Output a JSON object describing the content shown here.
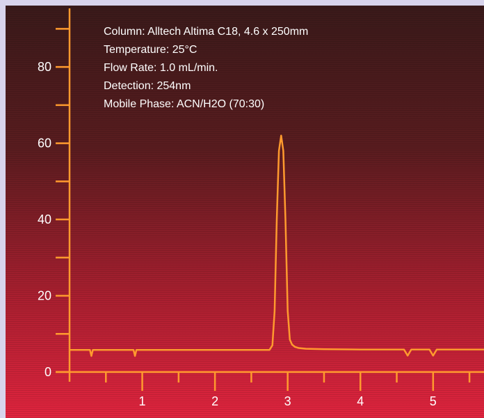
{
  "chart_data": {
    "type": "line",
    "title": "",
    "xlabel": "",
    "ylabel": "",
    "xlim": [
      0,
      5.7
    ],
    "ylim": [
      0,
      95
    ],
    "x_ticks": [
      0,
      0.5,
      1,
      1.5,
      2,
      2.5,
      3,
      3.5,
      4,
      4.5,
      5,
      5.5
    ],
    "x_tick_labels": [
      "1",
      "2",
      "3",
      "4",
      "5"
    ],
    "y_ticks": [
      0,
      10,
      20,
      30,
      40,
      50,
      60,
      70,
      80,
      90
    ],
    "y_tick_labels": [
      "0",
      "20",
      "40",
      "60",
      "80"
    ],
    "grid": false,
    "line_color": "#ff9a2e",
    "axis_color": "#ff9a2e",
    "annotations": [
      "Column: Alltech Altima C18, 4.6 x 250mm",
      "Temperature: 25°C",
      "Flow Rate: 1.0 mL/min.",
      "Detection: 254nm",
      "Mobile Phase: ACN/H2O (70:30)"
    ],
    "series": [
      {
        "x": [
          0,
          0.28,
          0.3,
          0.32,
          0.88,
          0.9,
          0.92,
          2.75,
          2.79,
          2.82,
          2.85,
          2.88,
          2.91,
          2.94,
          2.97,
          3.0,
          3.03,
          3.06,
          3.1,
          3.15,
          3.25,
          3.5,
          4.0,
          4.6,
          4.65,
          4.7,
          4.95,
          5.0,
          5.05,
          5.7
        ],
        "y": [
          5.8,
          5.8,
          4.2,
          5.8,
          5.8,
          4.2,
          5.8,
          5.8,
          7,
          16,
          40,
          58,
          62,
          58,
          40,
          16,
          8.5,
          7.2,
          6.6,
          6.3,
          6.1,
          6.0,
          5.9,
          5.9,
          4.3,
          5.9,
          5.9,
          4.3,
          5.9,
          5.9
        ]
      }
    ]
  }
}
